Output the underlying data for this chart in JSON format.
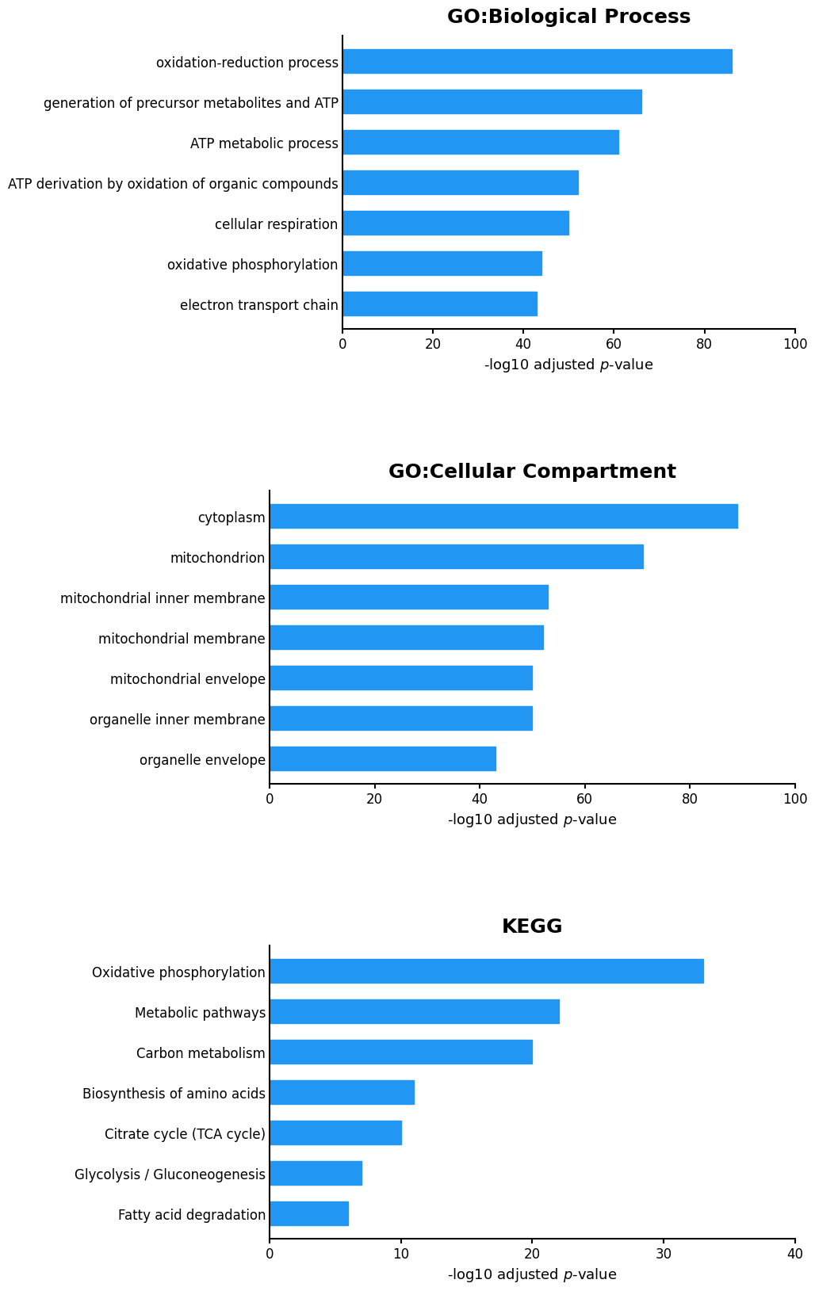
{
  "bp": {
    "title": "GO:Biological Process",
    "categories": [
      "oxidation-reduction process",
      "generation of precursor metabolites and ATP",
      "ATP metabolic process",
      "ATP derivation by oxidation of organic compounds",
      "cellular respiration",
      "oxidative phosphorylation",
      "electron transport chain"
    ],
    "values": [
      86,
      66,
      61,
      52,
      50,
      44,
      43
    ],
    "xlim": [
      0,
      100
    ],
    "xticks": [
      0,
      20,
      40,
      60,
      80,
      100
    ],
    "xlabel": "-log10 adjusted p-value"
  },
  "cc": {
    "title": "GO:Cellular Compartment",
    "categories": [
      "cytoplasm",
      "mitochondrion",
      "mitochondrial inner membrane",
      "mitochondrial membrane",
      "mitochondrial envelope",
      "organelle inner membrane",
      "organelle envelope"
    ],
    "values": [
      89,
      71,
      53,
      52,
      50,
      50,
      43
    ],
    "xlim": [
      0,
      100
    ],
    "xticks": [
      0,
      20,
      40,
      60,
      80,
      100
    ],
    "xlabel": "-log10 adjusted p-value"
  },
  "kegg": {
    "title": "KEGG",
    "categories": [
      "Oxidative phosphorylation",
      "Metabolic pathways",
      "Carbon metabolism",
      "Biosynthesis of amino acids",
      "Citrate cycle (TCA cycle)",
      "Glycolysis / Gluconeogenesis",
      "Fatty acid degradation"
    ],
    "values": [
      33,
      22,
      20,
      11,
      10,
      7,
      6
    ],
    "xlim": [
      0,
      40
    ],
    "xticks": [
      0,
      10,
      20,
      30,
      40
    ],
    "xlabel": "-log10 adjusted p-value"
  },
  "bar_color": "#2196F3",
  "bar_height": 0.6,
  "title_fontsize": 18,
  "label_fontsize": 12,
  "tick_fontsize": 12,
  "xlabel_fontsize": 13,
  "background_color": "#ffffff"
}
